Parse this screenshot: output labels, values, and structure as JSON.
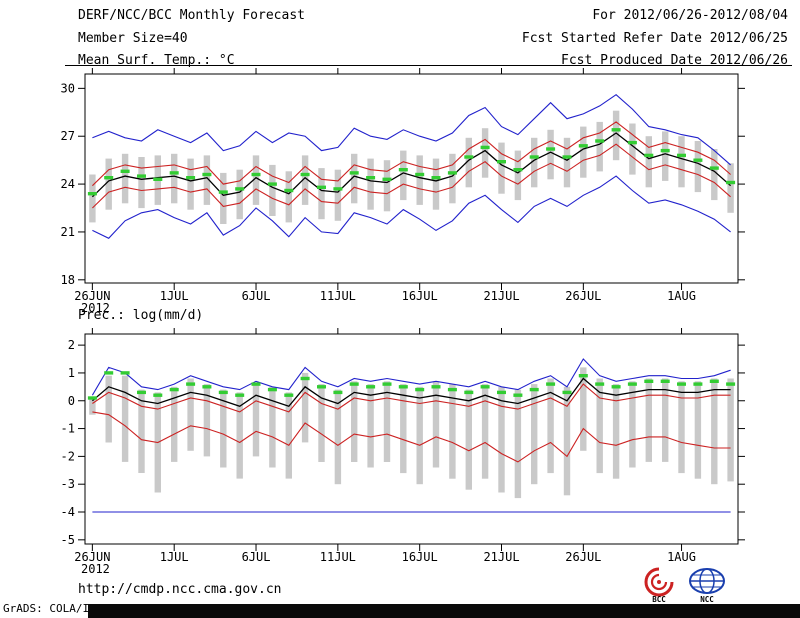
{
  "header": {
    "title": "DERF/NCC/BCC Monthly Forecast",
    "member_size": "Member Size=40",
    "for_range": "For 2012/06/26-2012/08/04",
    "fcst_started": "Fcst Started Refer Date 2012/06/25",
    "fcst_produced": "Fcst Produced Date 2012/06/26"
  },
  "footer": {
    "url": "http://cmdp.ncc.cma.gov.cn",
    "grads_credit": "GrADS: COLA/IGES",
    "logos": [
      {
        "name": "bcc-logo",
        "label": "BCC"
      },
      {
        "name": "ncc-logo",
        "label": "NCC"
      }
    ]
  },
  "chart_data": [
    {
      "type": "line",
      "title": "Mean Surf. Temp.: °C",
      "n_days": 40,
      "x_tick_days": [
        0,
        5,
        10,
        15,
        20,
        25,
        30,
        36
      ],
      "x_tick_labels": [
        "26JUN",
        "1JUL",
        "6JUL",
        "11JUL",
        "16JUL",
        "21JUL",
        "26JUL",
        "1AUG"
      ],
      "x_year_label": "2012",
      "ylim": [
        17.8,
        30.9
      ],
      "yticks": [
        30,
        27,
        24,
        21,
        18
      ],
      "grid": false,
      "legend": "none",
      "series": [
        {
          "name": "ensemble-max",
          "color": "#2222cc",
          "values": [
            26.9,
            27.3,
            26.9,
            26.7,
            27.4,
            27.0,
            26.6,
            27.2,
            26.1,
            26.4,
            27.3,
            26.6,
            27.2,
            27.0,
            26.1,
            26.3,
            27.5,
            27.0,
            26.8,
            27.4,
            27.0,
            26.7,
            27.2,
            28.3,
            28.8,
            27.6,
            27.1,
            28.1,
            29.1,
            28.1,
            28.4,
            28.9,
            29.6,
            28.7,
            27.6,
            27.4,
            27.1,
            26.9,
            26.1,
            25.2
          ]
        },
        {
          "name": "upper-spread",
          "color": "#cc2222",
          "values": [
            23.9,
            24.9,
            25.2,
            25.0,
            25.1,
            25.2,
            24.9,
            25.1,
            24.0,
            24.2,
            25.1,
            24.5,
            24.1,
            25.1,
            24.3,
            24.2,
            25.2,
            24.9,
            24.8,
            25.4,
            25.1,
            24.9,
            25.2,
            26.2,
            26.8,
            25.9,
            25.4,
            26.2,
            26.7,
            26.2,
            26.9,
            27.2,
            27.9,
            27.1,
            26.3,
            26.6,
            26.3,
            26.0,
            25.5,
            24.6
          ]
        },
        {
          "name": "ensemble-mean",
          "color": "#000000",
          "values": [
            23.2,
            24.2,
            24.5,
            24.3,
            24.4,
            24.5,
            24.2,
            24.4,
            23.3,
            23.5,
            24.4,
            23.8,
            23.4,
            24.4,
            23.6,
            23.5,
            24.5,
            24.2,
            24.1,
            24.7,
            24.4,
            24.2,
            24.5,
            25.5,
            26.1,
            25.2,
            24.7,
            25.5,
            26.0,
            25.5,
            26.2,
            26.5,
            27.2,
            26.4,
            25.6,
            25.9,
            25.6,
            25.3,
            24.8,
            23.9
          ]
        },
        {
          "name": "lower-spread",
          "color": "#cc2222",
          "values": [
            22.5,
            23.5,
            23.8,
            23.6,
            23.7,
            23.8,
            23.5,
            23.7,
            22.6,
            22.8,
            23.7,
            23.1,
            22.7,
            23.7,
            22.9,
            22.8,
            23.8,
            23.5,
            23.4,
            24.0,
            23.7,
            23.5,
            23.8,
            24.8,
            25.4,
            24.5,
            24.0,
            24.8,
            25.3,
            24.8,
            25.5,
            25.8,
            26.5,
            25.7,
            24.9,
            25.2,
            24.9,
            24.6,
            24.1,
            23.2
          ]
        },
        {
          "name": "ensemble-min",
          "color": "#2222cc",
          "values": [
            21.1,
            20.6,
            21.7,
            22.2,
            22.4,
            21.9,
            21.5,
            22.2,
            20.8,
            21.4,
            22.5,
            21.7,
            20.7,
            21.9,
            21.0,
            20.9,
            22.2,
            21.9,
            21.5,
            22.4,
            21.8,
            21.1,
            21.7,
            22.8,
            23.3,
            22.4,
            21.6,
            22.6,
            23.1,
            22.6,
            23.3,
            23.8,
            24.5,
            23.6,
            22.8,
            23.0,
            22.7,
            22.3,
            21.8,
            21.0
          ]
        }
      ],
      "member_bars": {
        "name": "member-spread-bars",
        "color": "#c9c9c9",
        "low": [
          21.6,
          22.4,
          22.8,
          22.5,
          22.7,
          22.8,
          22.4,
          22.7,
          21.5,
          21.8,
          22.7,
          22.0,
          21.6,
          22.7,
          21.8,
          21.7,
          22.8,
          22.4,
          22.3,
          23.0,
          22.7,
          22.4,
          22.8,
          23.8,
          24.4,
          23.4,
          23.0,
          23.8,
          24.3,
          23.8,
          24.4,
          24.8,
          25.5,
          24.6,
          23.8,
          24.2,
          23.8,
          23.5,
          23.0,
          22.2
        ],
        "high": [
          24.6,
          25.6,
          25.9,
          25.7,
          25.8,
          25.9,
          25.6,
          25.8,
          24.7,
          24.9,
          25.8,
          25.2,
          24.8,
          25.8,
          25.0,
          24.9,
          25.9,
          25.6,
          25.5,
          26.1,
          25.8,
          25.6,
          25.9,
          26.9,
          27.5,
          26.6,
          26.1,
          26.9,
          27.4,
          26.9,
          27.6,
          27.9,
          28.6,
          27.8,
          27.0,
          27.3,
          27.0,
          26.7,
          26.2,
          25.3
        ]
      },
      "median_dashes": {
        "name": "median-dashes",
        "color": "#33cc33",
        "values": [
          23.4,
          24.4,
          24.8,
          24.5,
          24.3,
          24.7,
          24.4,
          24.6,
          23.5,
          23.7,
          24.6,
          24.0,
          23.6,
          24.6,
          23.8,
          23.7,
          24.7,
          24.4,
          24.3,
          24.9,
          24.6,
          24.4,
          24.7,
          25.7,
          26.3,
          25.4,
          24.9,
          25.7,
          26.2,
          25.7,
          26.4,
          26.7,
          27.4,
          26.6,
          25.8,
          26.1,
          25.8,
          25.5,
          25.0,
          24.1
        ]
      }
    },
    {
      "type": "line",
      "title": "Prec.: log(mm/d)",
      "n_days": 40,
      "x_tick_days": [
        0,
        5,
        10,
        15,
        20,
        25,
        30,
        36
      ],
      "x_tick_labels": [
        "26JUN",
        "1JUL",
        "6JUL",
        "11JUL",
        "16JUL",
        "21JUL",
        "26JUL",
        "1AUG"
      ],
      "x_year_label": "2012",
      "ylim": [
        -5.15,
        2.4
      ],
      "yticks": [
        2,
        1,
        0,
        -1,
        -2,
        -3,
        -4,
        -5
      ],
      "grid": false,
      "legend": "none",
      "series": [
        {
          "name": "ensemble-max",
          "color": "#2222cc",
          "values": [
            0.2,
            1.2,
            1.0,
            0.5,
            0.4,
            0.6,
            0.9,
            0.7,
            0.5,
            0.4,
            0.7,
            0.5,
            0.4,
            1.2,
            0.7,
            0.5,
            0.8,
            0.7,
            0.8,
            0.7,
            0.6,
            0.7,
            0.6,
            0.5,
            0.7,
            0.5,
            0.4,
            0.7,
            0.9,
            0.5,
            1.5,
            0.9,
            0.7,
            0.8,
            0.9,
            0.9,
            0.8,
            0.8,
            0.9,
            1.1
          ]
        },
        {
          "name": "upper-spread",
          "color": "#cc2222",
          "values": [
            -0.1,
            0.3,
            0.1,
            -0.2,
            -0.3,
            -0.1,
            0.1,
            0.0,
            -0.2,
            -0.4,
            0.0,
            -0.2,
            -0.4,
            0.3,
            -0.1,
            -0.3,
            0.1,
            0.0,
            0.1,
            0.0,
            -0.1,
            0.0,
            -0.1,
            -0.2,
            0.0,
            -0.2,
            -0.3,
            -0.1,
            0.1,
            -0.2,
            0.6,
            0.1,
            0.0,
            0.1,
            0.2,
            0.2,
            0.1,
            0.1,
            0.2,
            0.2
          ]
        },
        {
          "name": "ensemble-mean",
          "color": "#000000",
          "values": [
            0.0,
            0.5,
            0.3,
            0.0,
            -0.1,
            0.1,
            0.3,
            0.2,
            0.0,
            -0.2,
            0.2,
            0.0,
            -0.2,
            0.5,
            0.1,
            -0.1,
            0.3,
            0.2,
            0.3,
            0.2,
            0.1,
            0.2,
            0.1,
            0.0,
            0.2,
            0.0,
            -0.1,
            0.1,
            0.3,
            0.0,
            0.8,
            0.3,
            0.2,
            0.3,
            0.4,
            0.4,
            0.3,
            0.3,
            0.4,
            0.4
          ]
        },
        {
          "name": "lower-spread",
          "color": "#cc2222",
          "values": [
            -0.4,
            -0.5,
            -0.9,
            -1.4,
            -1.5,
            -1.2,
            -0.9,
            -1.0,
            -1.2,
            -1.5,
            -1.1,
            -1.3,
            -1.6,
            -0.8,
            -1.2,
            -1.6,
            -1.2,
            -1.3,
            -1.2,
            -1.4,
            -1.6,
            -1.3,
            -1.5,
            -1.8,
            -1.5,
            -1.9,
            -2.2,
            -1.8,
            -1.5,
            -2.0,
            -1.0,
            -1.5,
            -1.6,
            -1.4,
            -1.3,
            -1.3,
            -1.5,
            -1.6,
            -1.7,
            -1.7
          ]
        },
        {
          "name": "ensemble-min",
          "color": "#2222cc",
          "values": [
            -4.0,
            -4.0,
            -4.0,
            -4.0,
            -4.0,
            -4.0,
            -4.0,
            -4.0,
            -4.0,
            -4.0,
            -4.0,
            -4.0,
            -4.0,
            -4.0,
            -4.0,
            -4.0,
            -4.0,
            -4.0,
            -4.0,
            -4.0,
            -4.0,
            -4.0,
            -4.0,
            -4.0,
            -4.0,
            -4.0,
            -4.0,
            -4.0,
            -4.0,
            -4.0,
            -4.0,
            -4.0,
            -4.0,
            -4.0,
            -4.0,
            -4.0,
            -4.0,
            -4.0,
            -4.0,
            -4.0
          ]
        }
      ],
      "member_bars": {
        "name": "member-spread-bars",
        "color": "#c9c9c9",
        "low": [
          -0.5,
          -1.5,
          -2.2,
          -2.6,
          -3.3,
          -2.2,
          -1.8,
          -2.0,
          -2.4,
          -2.8,
          -2.0,
          -2.4,
          -2.8,
          -1.5,
          -2.2,
          -3.0,
          -2.2,
          -2.4,
          -2.2,
          -2.6,
          -3.0,
          -2.4,
          -2.8,
          -3.2,
          -2.8,
          -3.3,
          -3.5,
          -3.0,
          -2.6,
          -3.4,
          -1.8,
          -2.6,
          -2.8,
          -2.4,
          -2.2,
          -2.2,
          -2.6,
          -2.8,
          -3.0,
          -2.9
        ],
        "high": [
          0.1,
          0.9,
          0.9,
          0.4,
          0.3,
          0.5,
          0.8,
          0.6,
          0.4,
          0.3,
          0.6,
          0.5,
          0.3,
          1.0,
          0.6,
          0.4,
          0.7,
          0.6,
          0.7,
          0.6,
          0.5,
          0.7,
          0.6,
          0.4,
          0.6,
          0.5,
          0.4,
          0.6,
          0.8,
          0.5,
          1.2,
          0.8,
          0.6,
          0.7,
          0.8,
          0.8,
          0.7,
          0.7,
          0.8,
          0.8
        ]
      },
      "median_dashes": {
        "name": "median-dashes",
        "color": "#33cc33",
        "values": [
          0.1,
          1.0,
          1.0,
          0.3,
          0.2,
          0.4,
          0.6,
          0.5,
          0.3,
          0.2,
          0.6,
          0.4,
          0.2,
          0.8,
          0.5,
          0.3,
          0.6,
          0.5,
          0.6,
          0.5,
          0.4,
          0.5,
          0.4,
          0.3,
          0.5,
          0.3,
          0.2,
          0.4,
          0.6,
          0.3,
          0.9,
          0.6,
          0.5,
          0.6,
          0.7,
          0.7,
          0.6,
          0.6,
          0.7,
          0.6
        ]
      }
    }
  ]
}
